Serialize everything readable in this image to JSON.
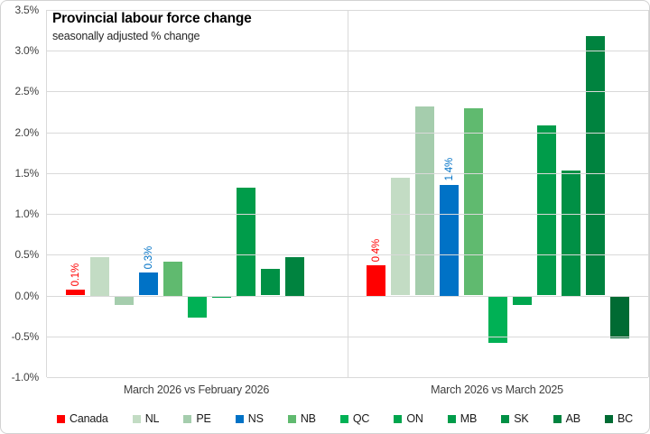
{
  "chart": {
    "title": "Provincial labour force change",
    "subtitle": "seasonally adjusted % change"
  },
  "axis": {
    "y_ticks": [
      "3.5%",
      "3.0%",
      "2.5%",
      "2.0%",
      "1.5%",
      "1.0%",
      "0.5%",
      "0.0%",
      "-0.5%",
      "-1.0%"
    ],
    "y_max": 3.5,
    "y_min": -1.0,
    "y_step": 0.5
  },
  "chart_data": {
    "type": "bar",
    "title": "Provincial labour force change",
    "subtitle": "seasonally adjusted % change",
    "ylabel": "seasonally adjusted % change",
    "ylim": [
      -1.0,
      3.5
    ],
    "grid": true,
    "legend_position": "bottom",
    "categories": [
      "March 2026 vs February 2026",
      "March 2026 vs March 2025"
    ],
    "series": [
      {
        "name": "Canada",
        "color": "#ff0000",
        "values": [
          0.07,
          0.37
        ],
        "labels": [
          "0.1%",
          "0.4%"
        ],
        "label_color": "#ff0000"
      },
      {
        "name": "NL",
        "color": "#c3dcc4",
        "values": [
          0.47,
          1.44
        ]
      },
      {
        "name": "PE",
        "color": "#a5cdad",
        "values": [
          -0.1,
          2.32
        ]
      },
      {
        "name": "NS",
        "color": "#0072c6",
        "values": [
          0.28,
          1.36
        ],
        "labels": [
          "0.3%",
          "1.4%"
        ],
        "label_color": "#0072c6"
      },
      {
        "name": "NB",
        "color": "#60ba6f",
        "values": [
          0.42,
          2.29
        ]
      },
      {
        "name": "QC",
        "color": "#00b155",
        "values": [
          -0.26,
          -0.57
        ]
      },
      {
        "name": "ON",
        "color": "#00a64e",
        "values": [
          -0.01,
          -0.1
        ]
      },
      {
        "name": "MB",
        "color": "#009c4a",
        "values": [
          1.32,
          2.08
        ]
      },
      {
        "name": "SK",
        "color": "#009045",
        "values": [
          0.33,
          1.53
        ]
      },
      {
        "name": "AB",
        "color": "#00833f",
        "values": [
          0.47,
          3.18
        ]
      },
      {
        "name": "BC",
        "color": "#006b33",
        "values": [
          0.0,
          -0.51
        ]
      }
    ],
    "colors": {
      "gridline": "#d9d9d9",
      "axis_text": "#404040"
    }
  }
}
